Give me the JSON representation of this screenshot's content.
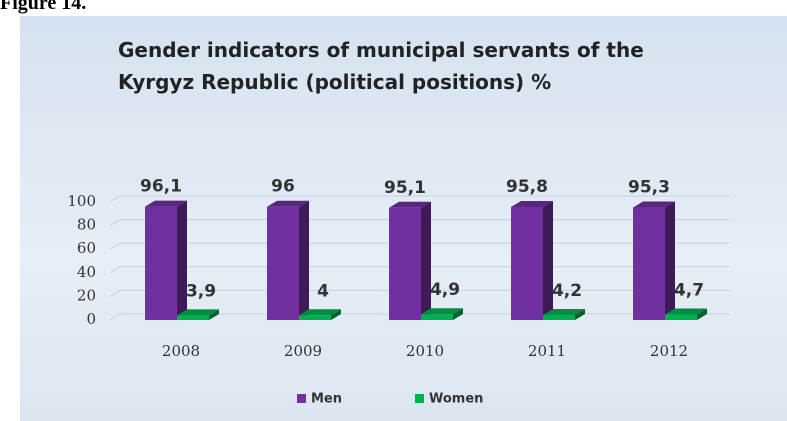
{
  "figure_label": "Figure 14.",
  "chart_data": {
    "type": "bar3d",
    "title": "Gender indicators of municipal servants of the Kyrgyz Republic (political positions) %",
    "categories": [
      "2008",
      "2009",
      "2010",
      "2011",
      "2012"
    ],
    "series": [
      {
        "name": "Men",
        "color": "#7030a0",
        "values": [
          96.1,
          96,
          95.1,
          95.8,
          95.3
        ],
        "value_labels": [
          "96,1",
          "96",
          "95,1",
          "95,8",
          "95,3"
        ]
      },
      {
        "name": "Women",
        "color": "#00b050",
        "values": [
          3.9,
          4,
          4.9,
          4.2,
          4.7
        ],
        "value_labels": [
          "3,9",
          "4",
          "4,9",
          "4,2",
          "4,7"
        ]
      }
    ],
    "ylim": [
      0,
      100
    ],
    "yticks": [
      0,
      20,
      40,
      60,
      80,
      100
    ],
    "grid": true,
    "legend": "bottom"
  }
}
